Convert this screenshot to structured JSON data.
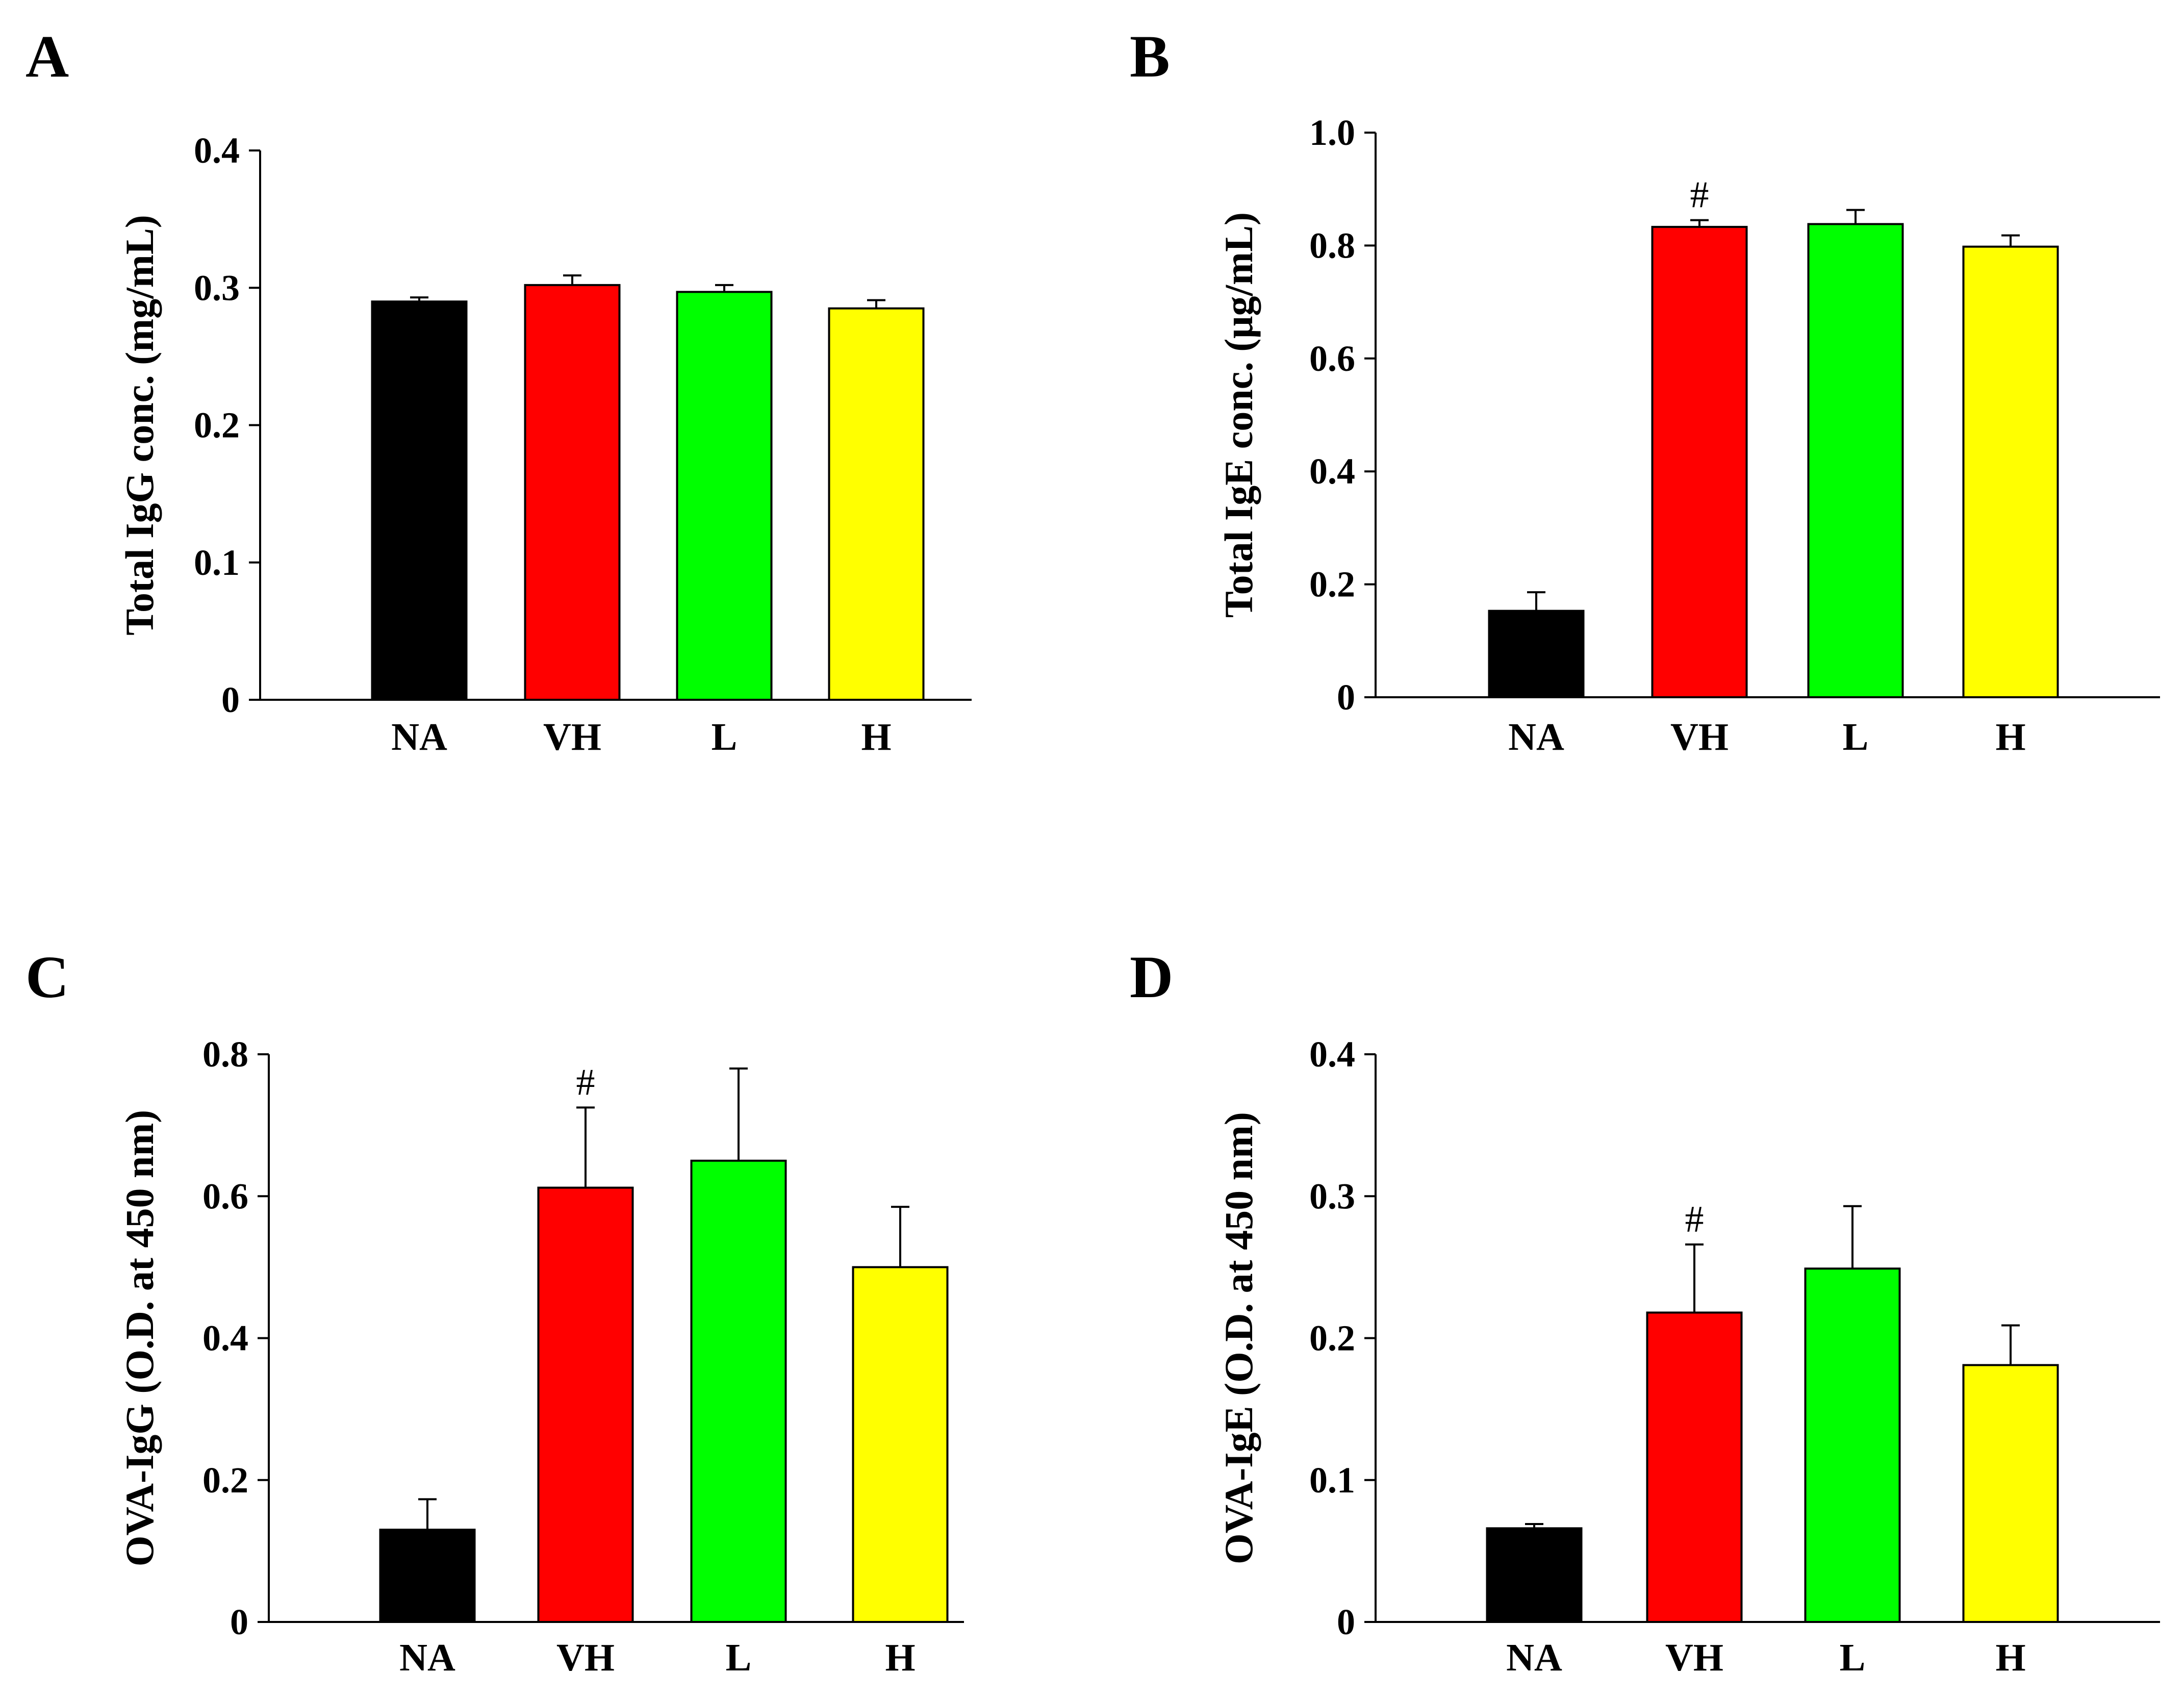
{
  "chart_data": [
    {
      "panel": "A",
      "type": "bar",
      "title": "",
      "xlabel": "",
      "ylabel": "Total IgG conc. (mg/mL)",
      "ylim": [
        0,
        0.4
      ],
      "yticks": [
        "0",
        "0.1",
        "0.2",
        "0.3",
        "0.4"
      ],
      "categories": [
        "NA",
        "VH",
        "L",
        "H"
      ],
      "values": [
        0.29,
        0.302,
        0.297,
        0.285
      ],
      "errors": [
        0.003,
        0.007,
        0.005,
        0.006
      ],
      "colors": [
        "#000000",
        "#ff0000",
        "#00ff00",
        "#ffff00"
      ],
      "annotations": [
        null,
        null,
        null,
        null
      ]
    },
    {
      "panel": "B",
      "type": "bar",
      "title": "",
      "xlabel": "",
      "ylabel": "Total IgE conc. (μg/mL)",
      "ylim": [
        0,
        1.0
      ],
      "yticks": [
        "0",
        "0.2",
        "0.4",
        "0.6",
        "0.8",
        "1.0"
      ],
      "categories": [
        "NA",
        "VH",
        "L",
        "H"
      ],
      "values": [
        0.153,
        0.833,
        0.838,
        0.798
      ],
      "errors": [
        0.033,
        0.012,
        0.025,
        0.02
      ],
      "colors": [
        "#000000",
        "#ff0000",
        "#00ff00",
        "#ffff00"
      ],
      "annotations": [
        null,
        "#",
        null,
        null
      ]
    },
    {
      "panel": "C",
      "type": "bar",
      "title": "",
      "xlabel": "",
      "ylabel": "OVA-IgG (O.D. at 450 nm)",
      "ylim": [
        0,
        0.8
      ],
      "yticks": [
        "0",
        "0.2",
        "0.4",
        "0.6",
        "0.8"
      ],
      "categories": [
        "NA",
        "VH",
        "L",
        "H"
      ],
      "values": [
        0.13,
        0.612,
        0.65,
        0.5
      ],
      "errors": [
        0.043,
        0.113,
        0.13,
        0.085
      ],
      "colors": [
        "#000000",
        "#ff0000",
        "#00ff00",
        "#ffff00"
      ],
      "annotations": [
        null,
        "#",
        null,
        null
      ]
    },
    {
      "panel": "D",
      "type": "bar",
      "title": "",
      "xlabel": "",
      "ylabel": "OVA-IgE (O.D. at 450 nm)",
      "ylim": [
        0,
        0.4
      ],
      "yticks": [
        "0",
        "0.1",
        "0.2",
        "0.3",
        "0.4"
      ],
      "categories": [
        "NA",
        "VH",
        "L",
        "H"
      ],
      "values": [
        0.066,
        0.218,
        0.249,
        0.181
      ],
      "errors": [
        0.003,
        0.048,
        0.044,
        0.028
      ],
      "colors": [
        "#000000",
        "#ff0000",
        "#00ff00",
        "#ffff00"
      ],
      "annotations": [
        null,
        "#",
        null,
        null
      ]
    }
  ]
}
